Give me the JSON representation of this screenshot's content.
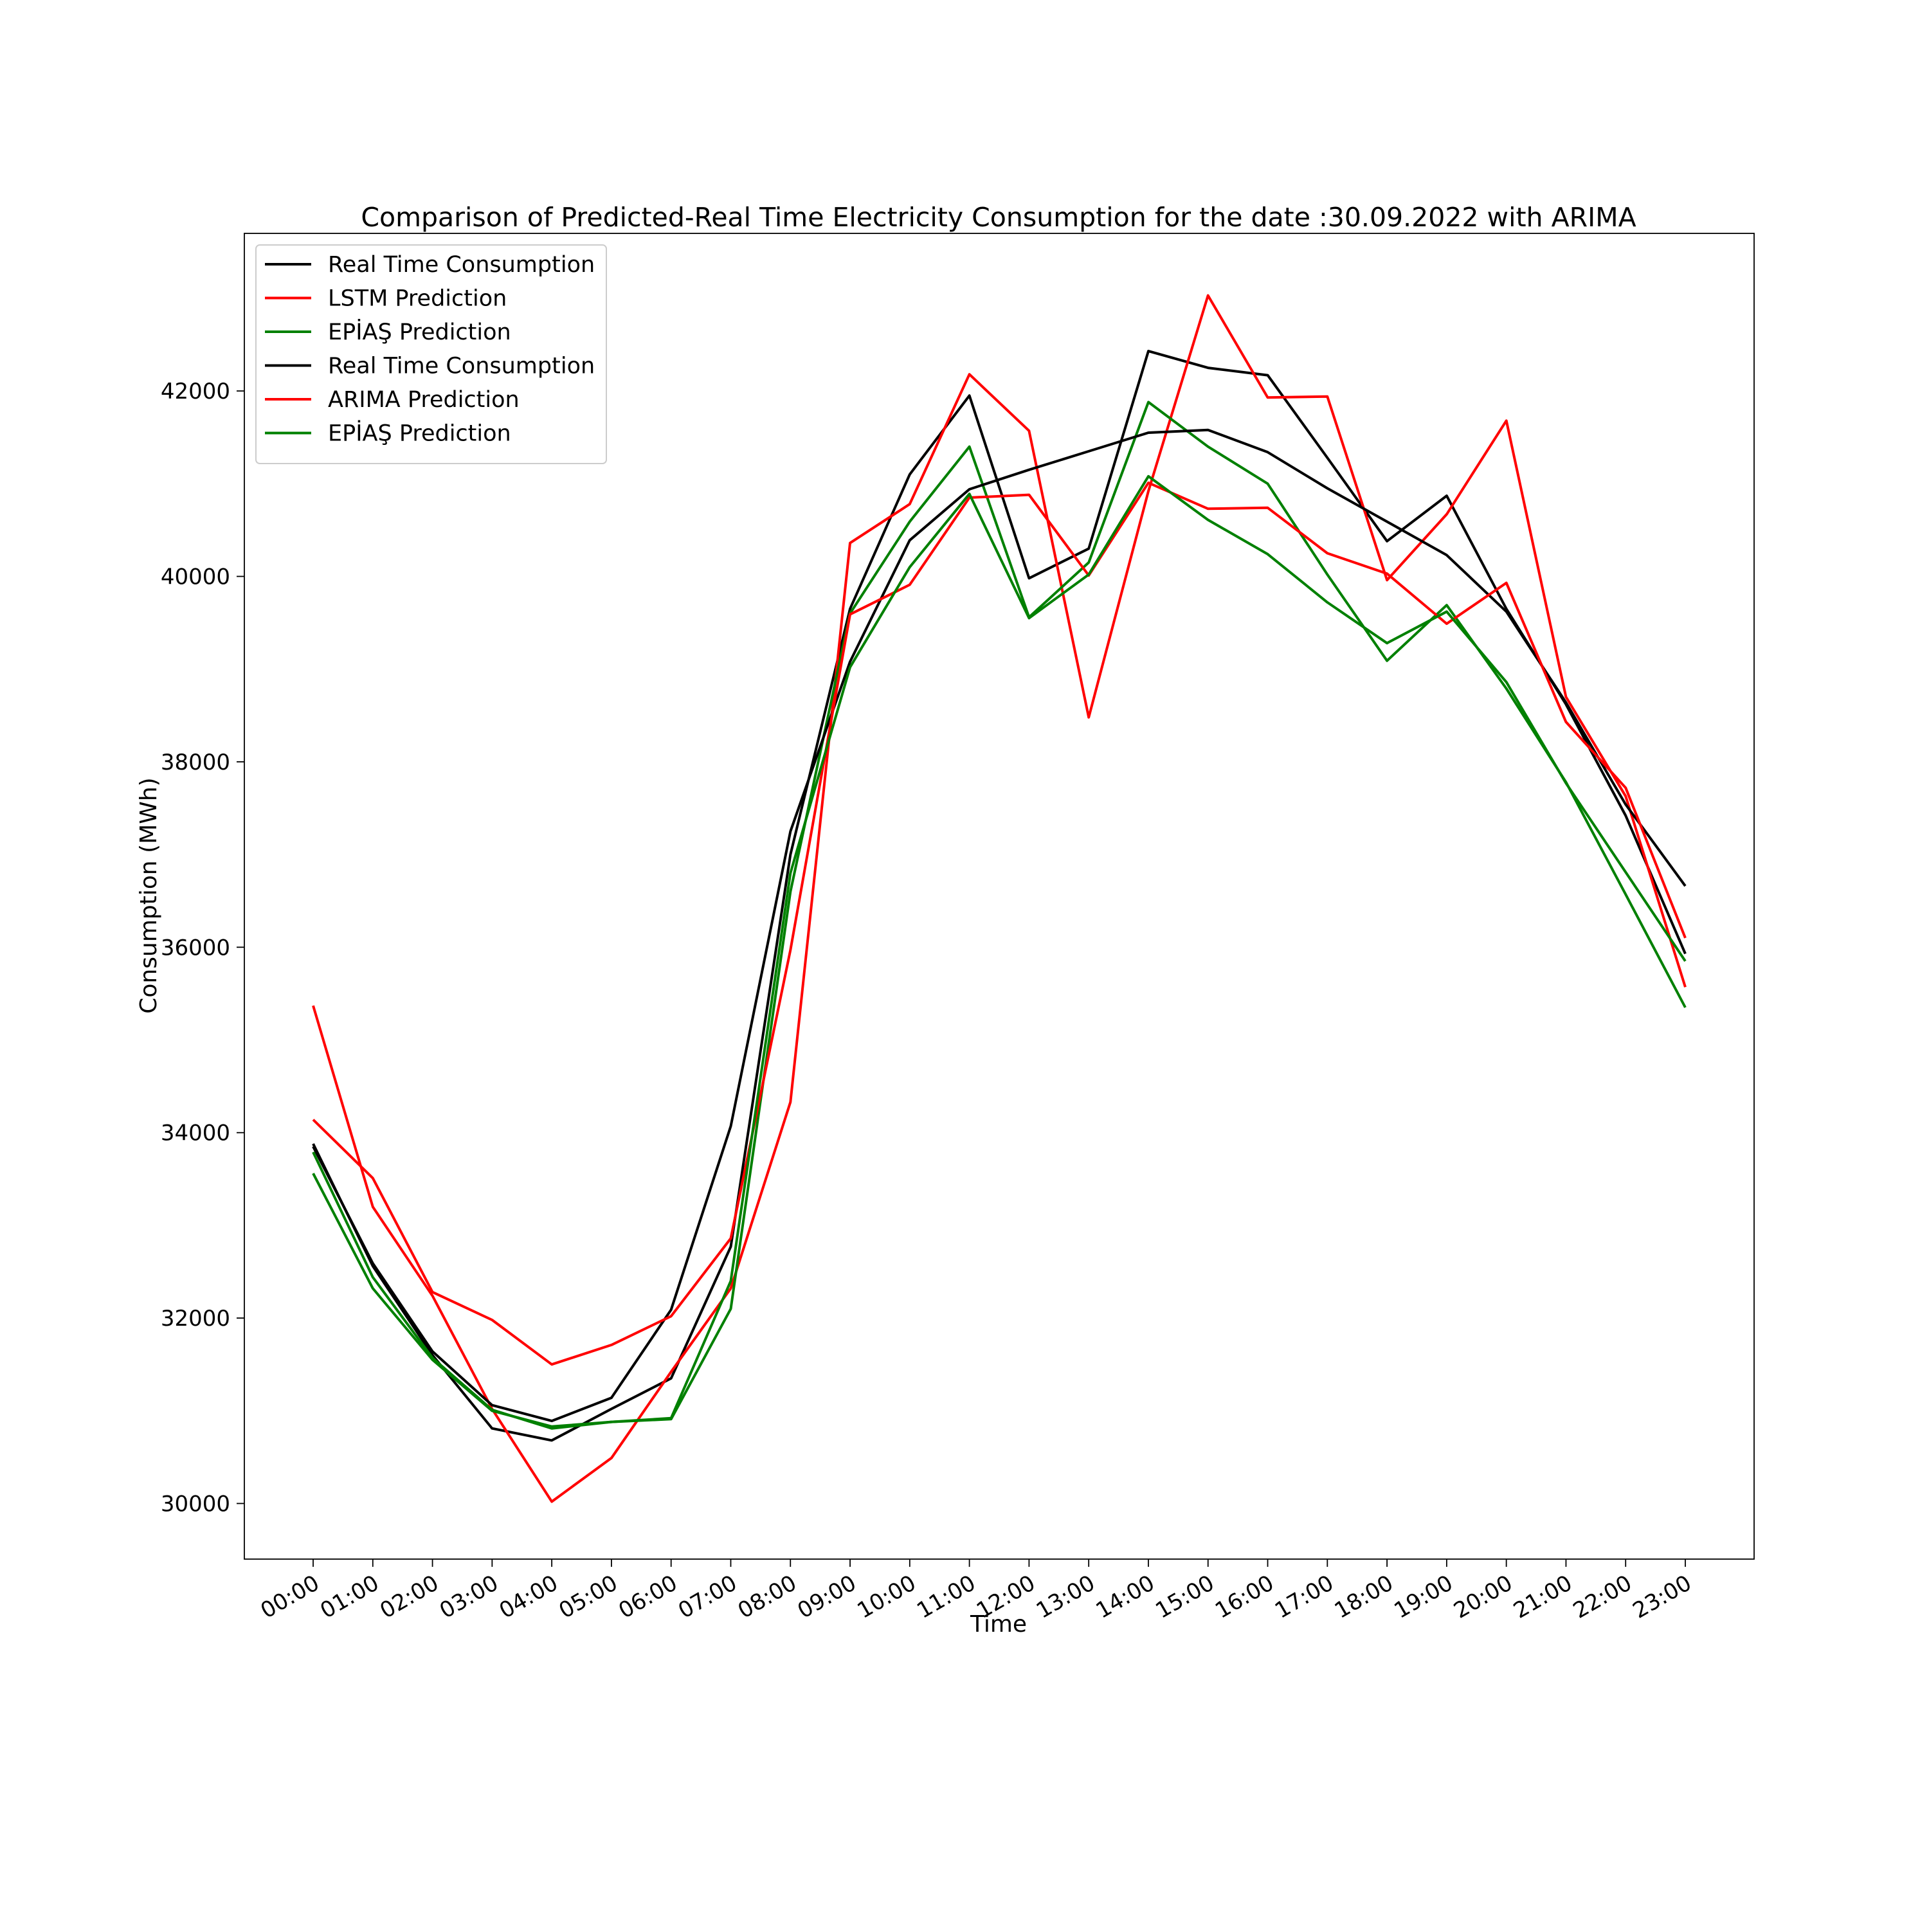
{
  "chart_data": {
    "type": "line",
    "title": "Comparison of Predicted-Real Time Electricity Consumption for the date :30.09.2022 with ARIMA",
    "xlabel": "Time",
    "ylabel": "Consumption (MWh)",
    "categories": [
      "00:00",
      "01:00",
      "02:00",
      "03:00",
      "04:00",
      "05:00",
      "06:00",
      "07:00",
      "08:00",
      "09:00",
      "10:00",
      "11:00",
      "12:00",
      "13:00",
      "14:00",
      "15:00",
      "16:00",
      "17:00",
      "18:00",
      "19:00",
      "20:00",
      "21:00",
      "22:00",
      "23:00"
    ],
    "ylim": [
      29400,
      43700
    ],
    "yticks": [
      30000,
      32000,
      34000,
      36000,
      38000,
      40000,
      42000
    ],
    "grid": false,
    "legend_position": "top-left",
    "series": [
      {
        "name": "Real Time Consumption",
        "color": "#000000",
        "values": [
          33880,
          32560,
          31600,
          30810,
          30680,
          31020,
          31350,
          32770,
          37000,
          39650,
          41100,
          41950,
          39980,
          40300,
          42430,
          42250,
          42170,
          41280,
          40380,
          40870,
          39650,
          38620,
          37420,
          35930
        ]
      },
      {
        "name": "LSTM Prediction",
        "color": "#ff0000",
        "values": [
          35370,
          33200,
          32240,
          31020,
          30020,
          30490,
          31420,
          32320,
          34330,
          40360,
          40780,
          42180,
          41570,
          38480,
          40920,
          43030,
          41930,
          41940,
          39960,
          40670,
          41680,
          38700,
          37630,
          35570
        ]
      },
      {
        "name": "EPİAŞ Prediction",
        "color": "#008000",
        "values": [
          33560,
          32320,
          31550,
          31000,
          30830,
          30880,
          30910,
          32100,
          36600,
          39600,
          40590,
          41400,
          39560,
          40150,
          41880,
          41400,
          41000,
          40020,
          39090,
          39690,
          38790,
          37780,
          36570,
          35350
        ]
      },
      {
        "name": "Real Time Consumption",
        "color": "#000000",
        "values": [
          33850,
          32590,
          31640,
          31060,
          30890,
          31140,
          32090,
          34070,
          37250,
          39080,
          40390,
          40940,
          41150,
          41350,
          41550,
          41580,
          41340,
          40950,
          40590,
          40230,
          39620,
          38640,
          37540,
          36660
        ]
      },
      {
        "name": "ARIMA Prediction",
        "color": "#ff0000",
        "values": [
          34140,
          33510,
          32280,
          31980,
          31500,
          31710,
          32020,
          32860,
          35970,
          39590,
          39910,
          40850,
          40880,
          40010,
          41010,
          40730,
          40740,
          40250,
          40030,
          39490,
          39930,
          38430,
          37720,
          36100
        ]
      },
      {
        "name": "EPİAŞ Prediction",
        "color": "#008000",
        "values": [
          33790,
          32440,
          31570,
          31010,
          30810,
          30880,
          30920,
          32400,
          36800,
          39020,
          40100,
          40890,
          39550,
          40020,
          41080,
          40610,
          40240,
          39720,
          39280,
          39620,
          38860,
          37770,
          36810,
          35850
        ]
      }
    ]
  }
}
